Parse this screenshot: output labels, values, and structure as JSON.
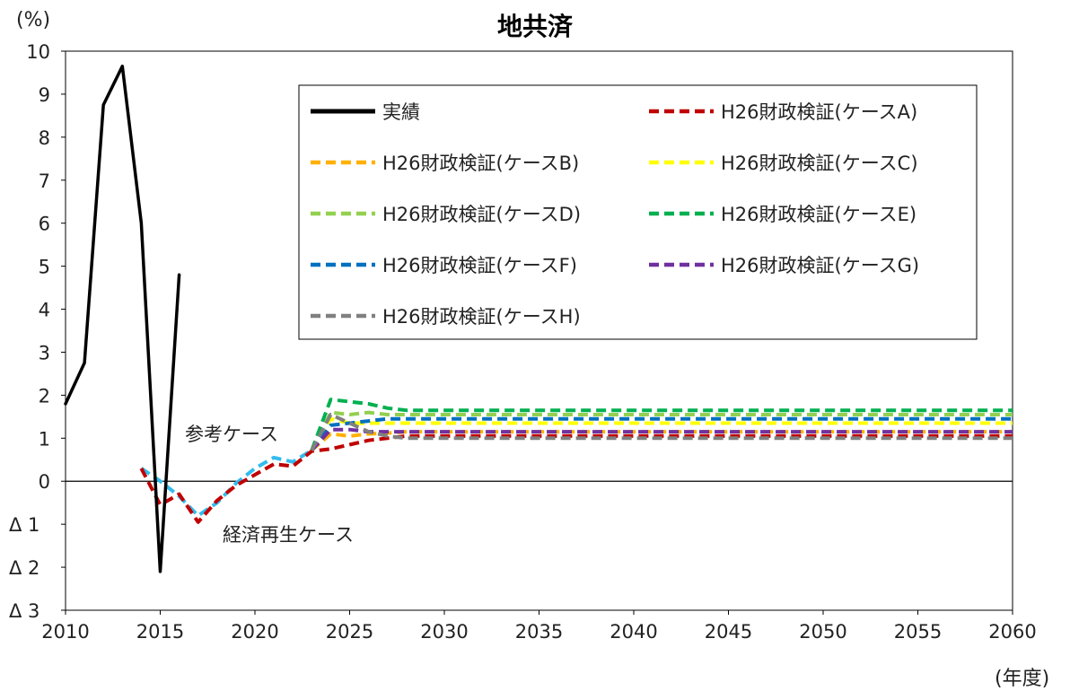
{
  "chart_data": {
    "type": "line",
    "title": "地共済",
    "ylabel": "(%)",
    "xlabel": "(年度)",
    "xlim": [
      2010,
      2060
    ],
    "ylim": [
      -3,
      10
    ],
    "x_ticks": [
      "2010",
      "2015",
      "2020",
      "2025",
      "2030",
      "2035",
      "2040",
      "2045",
      "2050",
      "2055",
      "2060"
    ],
    "y_ticks": [
      {
        "value": 10,
        "label": "10"
      },
      {
        "value": 9,
        "label": "9"
      },
      {
        "value": 8,
        "label": "8"
      },
      {
        "value": 7,
        "label": "7"
      },
      {
        "value": 6,
        "label": "6"
      },
      {
        "value": 5,
        "label": "5"
      },
      {
        "value": 4,
        "label": "4"
      },
      {
        "value": 3,
        "label": "3"
      },
      {
        "value": 2,
        "label": "2"
      },
      {
        "value": 1,
        "label": "1"
      },
      {
        "value": 0,
        "label": "0"
      },
      {
        "value": -1,
        "label": "Δ 1"
      },
      {
        "value": -2,
        "label": "Δ 2"
      },
      {
        "value": -3,
        "label": "Δ 3"
      }
    ],
    "grid": false,
    "legend_position": "top-right",
    "annotations": [
      "参考ケース",
      "経済再生ケース"
    ],
    "series": [
      {
        "name": "実績",
        "color": "#000000",
        "dash": false,
        "x": [
          2010,
          2011,
          2012,
          2013,
          2014,
          2015,
          2016
        ],
        "y": [
          1.8,
          2.75,
          8.75,
          9.65,
          6.0,
          -2.1,
          4.8
        ]
      },
      {
        "name": "H26財政検証(ケースA)",
        "color": "#C00000",
        "dash": true,
        "x": [
          2014,
          2015,
          2016,
          2017,
          2018,
          2019,
          2020,
          2021,
          2022,
          2023,
          2024,
          2025,
          2026,
          2027,
          2028,
          2060
        ],
        "y": [
          0.3,
          -0.55,
          -0.3,
          -0.95,
          -0.45,
          -0.1,
          0.15,
          0.4,
          0.35,
          0.7,
          0.75,
          0.85,
          0.95,
          1.0,
          1.05,
          1.05
        ]
      },
      {
        "name": "H26財政検証(ケースB)",
        "color": "#FFB000",
        "dash": true,
        "x": [
          2023,
          2024,
          2025,
          2026,
          2027,
          2028,
          2060
        ],
        "y": [
          0.72,
          1.1,
          1.05,
          1.1,
          1.12,
          1.15,
          1.15
        ]
      },
      {
        "name": "H26財政検証(ケースC)",
        "color": "#FFFF00",
        "dash": true,
        "x": [
          2023,
          2024,
          2025,
          2026,
          2027,
          2028,
          2060
        ],
        "y": [
          0.72,
          1.45,
          1.35,
          1.35,
          1.35,
          1.35,
          1.35
        ]
      },
      {
        "name": "H26財政検証(ケースD)",
        "color": "#92D050",
        "dash": true,
        "x": [
          2023,
          2024,
          2025,
          2026,
          2027,
          2028,
          2060
        ],
        "y": [
          0.72,
          1.6,
          1.55,
          1.6,
          1.55,
          1.55,
          1.55
        ]
      },
      {
        "name": "H26財政検証(ケースE)",
        "color": "#00B050",
        "dash": true,
        "x": [
          2023,
          2024,
          2025,
          2026,
          2027,
          2028,
          2060
        ],
        "y": [
          0.72,
          1.9,
          1.85,
          1.8,
          1.7,
          1.65,
          1.65
        ]
      },
      {
        "name": "H26財政検証(ケースF)",
        "color": "#0070C0",
        "dash": true,
        "x": [
          2023,
          2024,
          2025,
          2026,
          2027,
          2028,
          2060
        ],
        "y": [
          0.72,
          1.3,
          1.35,
          1.4,
          1.45,
          1.45,
          1.45
        ]
      },
      {
        "name": "H26財政検証(ケースG)",
        "color": "#7030A0",
        "dash": true,
        "x": [
          2023,
          2024,
          2025,
          2026,
          2027,
          2028,
          2060
        ],
        "y": [
          0.72,
          1.2,
          1.2,
          1.15,
          1.15,
          1.15,
          1.15
        ]
      },
      {
        "name": "H26財政検証(ケースH)",
        "color": "#808080",
        "dash": true,
        "x": [
          2023,
          2024,
          2025,
          2026,
          2027,
          2028,
          2060
        ],
        "y": [
          0.72,
          1.55,
          1.35,
          1.15,
          1.05,
          1.0,
          1.0
        ]
      },
      {
        "name": "",
        "color": "#33BBEE",
        "dash": true,
        "x": [
          2014,
          2015,
          2016,
          2017,
          2018,
          2019,
          2020,
          2021,
          2022,
          2023
        ],
        "y": [
          0.3,
          0.0,
          -0.35,
          -0.8,
          -0.5,
          -0.05,
          0.3,
          0.55,
          0.45,
          0.72
        ]
      }
    ]
  }
}
